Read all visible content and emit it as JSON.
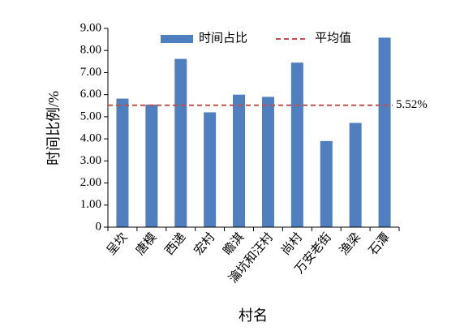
{
  "chart_data": {
    "type": "bar",
    "x_label": "村名",
    "y_label": "时间比例/%",
    "categories": [
      "呈坎",
      "唐模",
      "西递",
      "宏村",
      "瞻淇",
      "瀹坑和汪村",
      "尚村",
      "万安老街",
      "渔梁",
      "石潭"
    ],
    "series": [
      {
        "name": "时间占比",
        "color": "#4f7fbf",
        "values": [
          5.82,
          5.55,
          7.62,
          5.2,
          6.0,
          5.9,
          7.45,
          3.9,
          4.72,
          8.58
        ]
      }
    ],
    "reference_line": {
      "name": "平均值",
      "value": 5.52,
      "value_label": "5.52%",
      "color": "#c0504d"
    },
    "ylim": [
      0,
      9
    ],
    "yticks": [
      0,
      {
        "value": 1,
        "label": "1.00"
      },
      {
        "value": 2,
        "label": "2.00"
      },
      {
        "value": 3,
        "label": "3.00"
      },
      {
        "value": 4,
        "label": "4.00"
      },
      {
        "value": 5,
        "label": "5.00"
      },
      {
        "value": 6,
        "label": "6.00"
      },
      {
        "value": 7,
        "label": "7.00"
      },
      {
        "value": 8,
        "label": "8.00"
      },
      {
        "value": 9,
        "label": "9.00"
      }
    ]
  }
}
